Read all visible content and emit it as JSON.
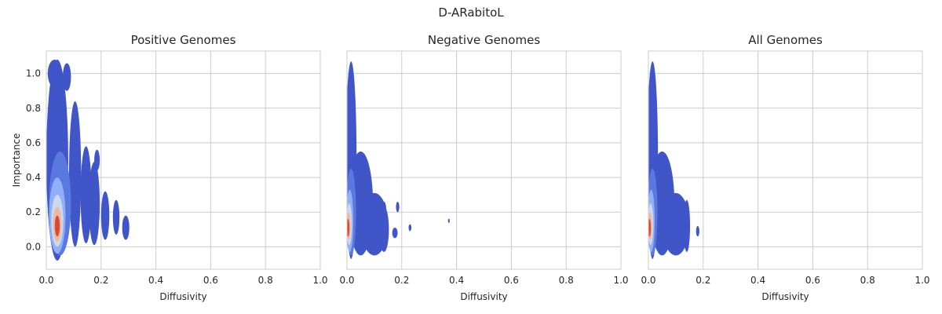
{
  "figure": {
    "suptitle": "D-ARabitoL"
  },
  "chart_data": [
    {
      "type": "kde-contour",
      "title": "Positive Genomes",
      "xlabel": "Diffusivity",
      "ylabel": "Importance",
      "xlim": [
        0.0,
        1.0
      ],
      "ylim": [
        -0.13,
        1.13
      ],
      "xticks": [
        "0.0",
        "0.2",
        "0.4",
        "0.6",
        "0.8",
        "1.0"
      ],
      "yticks": [
        "0.0",
        "0.2",
        "0.4",
        "0.6",
        "0.8",
        "1.0"
      ],
      "show_yticklabels": true,
      "grid": true,
      "colormap": "coolwarm",
      "peak": {
        "x": 0.04,
        "y": 0.12
      },
      "blobs": [
        {
          "x": 0.04,
          "y": 0.5,
          "rx": 0.04,
          "ry": 0.58,
          "level": 0
        },
        {
          "x": 0.075,
          "y": 0.98,
          "rx": 0.015,
          "ry": 0.08,
          "level": 0
        },
        {
          "x": 0.03,
          "y": 1.0,
          "rx": 0.025,
          "ry": 0.08,
          "level": 0
        },
        {
          "x": 0.105,
          "y": 0.42,
          "rx": 0.022,
          "ry": 0.42,
          "level": 0
        },
        {
          "x": 0.145,
          "y": 0.3,
          "rx": 0.02,
          "ry": 0.28,
          "level": 0
        },
        {
          "x": 0.175,
          "y": 0.25,
          "rx": 0.02,
          "ry": 0.24,
          "level": 0
        },
        {
          "x": 0.185,
          "y": 0.5,
          "rx": 0.01,
          "ry": 0.06,
          "level": 0
        },
        {
          "x": 0.215,
          "y": 0.18,
          "rx": 0.015,
          "ry": 0.14,
          "level": 0
        },
        {
          "x": 0.255,
          "y": 0.17,
          "rx": 0.012,
          "ry": 0.1,
          "level": 0
        },
        {
          "x": 0.29,
          "y": 0.11,
          "rx": 0.013,
          "ry": 0.07,
          "level": 0
        },
        {
          "x": 0.05,
          "y": 0.25,
          "rx": 0.04,
          "ry": 0.3,
          "level": 1
        },
        {
          "x": 0.04,
          "y": 0.18,
          "rx": 0.03,
          "ry": 0.22,
          "level": 2
        },
        {
          "x": 0.04,
          "y": 0.15,
          "rx": 0.022,
          "ry": 0.15,
          "level": 3
        },
        {
          "x": 0.04,
          "y": 0.13,
          "rx": 0.015,
          "ry": 0.1,
          "level": 4
        },
        {
          "x": 0.04,
          "y": 0.12,
          "rx": 0.009,
          "ry": 0.06,
          "level": 5
        }
      ]
    },
    {
      "type": "kde-contour",
      "title": "Negative Genomes",
      "xlabel": "Diffusivity",
      "ylabel": "",
      "xlim": [
        0.0,
        1.0
      ],
      "ylim": [
        -0.13,
        1.13
      ],
      "xticks": [
        "0.0",
        "0.2",
        "0.4",
        "0.6",
        "0.8",
        "1.0"
      ],
      "yticks": [],
      "show_yticklabels": false,
      "grid": true,
      "colormap": "coolwarm",
      "peak": {
        "x": 0.01,
        "y": 0.12
      },
      "blobs": [
        {
          "x": 0.015,
          "y": 0.5,
          "rx": 0.02,
          "ry": 0.57,
          "level": 0
        },
        {
          "x": 0.05,
          "y": 0.25,
          "rx": 0.045,
          "ry": 0.3,
          "level": 0
        },
        {
          "x": 0.1,
          "y": 0.13,
          "rx": 0.05,
          "ry": 0.18,
          "level": 0
        },
        {
          "x": 0.135,
          "y": 0.1,
          "rx": 0.018,
          "ry": 0.13,
          "level": 0
        },
        {
          "x": 0.135,
          "y": 0.22,
          "rx": 0.008,
          "ry": 0.04,
          "level": 0
        },
        {
          "x": 0.185,
          "y": 0.23,
          "rx": 0.006,
          "ry": 0.03,
          "level": 0
        },
        {
          "x": 0.175,
          "y": 0.08,
          "rx": 0.01,
          "ry": 0.03,
          "level": 0
        },
        {
          "x": 0.23,
          "y": 0.11,
          "rx": 0.005,
          "ry": 0.02,
          "level": 0
        },
        {
          "x": 0.372,
          "y": 0.15,
          "rx": 0.003,
          "ry": 0.012,
          "level": 0
        },
        {
          "x": 0.015,
          "y": 0.2,
          "rx": 0.018,
          "ry": 0.25,
          "level": 1
        },
        {
          "x": 0.01,
          "y": 0.15,
          "rx": 0.013,
          "ry": 0.18,
          "level": 2
        },
        {
          "x": 0.008,
          "y": 0.13,
          "rx": 0.01,
          "ry": 0.12,
          "level": 3
        },
        {
          "x": 0.006,
          "y": 0.12,
          "rx": 0.007,
          "ry": 0.08,
          "level": 4
        },
        {
          "x": 0.004,
          "y": 0.11,
          "rx": 0.005,
          "ry": 0.05,
          "level": 5
        }
      ]
    },
    {
      "type": "kde-contour",
      "title": "All Genomes",
      "xlabel": "Diffusivity",
      "ylabel": "",
      "xlim": [
        0.0,
        1.0
      ],
      "ylim": [
        -0.13,
        1.13
      ],
      "xticks": [
        "0.0",
        "0.2",
        "0.4",
        "0.6",
        "0.8",
        "1.0"
      ],
      "yticks": [],
      "show_yticklabels": false,
      "grid": true,
      "colormap": "coolwarm",
      "peak": {
        "x": 0.01,
        "y": 0.12
      },
      "blobs": [
        {
          "x": 0.015,
          "y": 0.5,
          "rx": 0.02,
          "ry": 0.57,
          "level": 0
        },
        {
          "x": 0.05,
          "y": 0.25,
          "rx": 0.045,
          "ry": 0.3,
          "level": 0
        },
        {
          "x": 0.1,
          "y": 0.13,
          "rx": 0.05,
          "ry": 0.18,
          "level": 0
        },
        {
          "x": 0.14,
          "y": 0.12,
          "rx": 0.012,
          "ry": 0.15,
          "level": 0
        },
        {
          "x": 0.18,
          "y": 0.09,
          "rx": 0.006,
          "ry": 0.03,
          "level": 0
        },
        {
          "x": 0.015,
          "y": 0.2,
          "rx": 0.018,
          "ry": 0.25,
          "level": 1
        },
        {
          "x": 0.01,
          "y": 0.15,
          "rx": 0.013,
          "ry": 0.18,
          "level": 2
        },
        {
          "x": 0.008,
          "y": 0.13,
          "rx": 0.01,
          "ry": 0.12,
          "level": 3
        },
        {
          "x": 0.006,
          "y": 0.12,
          "rx": 0.007,
          "ry": 0.08,
          "level": 4
        },
        {
          "x": 0.004,
          "y": 0.11,
          "rx": 0.005,
          "ry": 0.05,
          "level": 5
        }
      ]
    }
  ],
  "colors": {
    "levels": [
      "#4055c8",
      "#5a78e0",
      "#8fb0f8",
      "#cad8f0",
      "#f2b79a",
      "#d44a3a"
    ],
    "grid": "#cccccc",
    "text": "#262626"
  }
}
